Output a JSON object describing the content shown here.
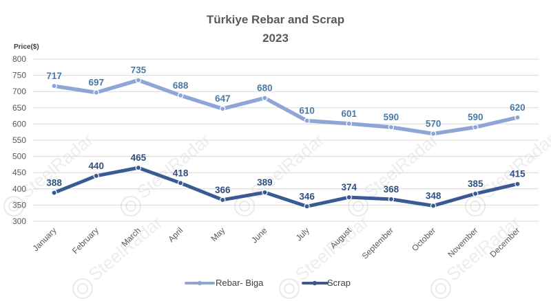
{
  "chart_data": {
    "type": "line",
    "title": "Türkiye Rebar and Scrap",
    "subtitle": "2023",
    "ylabel": "Price($)",
    "xlabel": "",
    "ylim": [
      300,
      800
    ],
    "yticks": [
      300,
      350,
      400,
      450,
      500,
      550,
      600,
      650,
      700,
      750,
      800
    ],
    "grid": true,
    "legend": "bottom",
    "categories": [
      "January",
      "February",
      "March",
      "April",
      "May",
      "June",
      "July",
      "August",
      "September",
      "October",
      "November",
      "December"
    ],
    "series": [
      {
        "name": "Rebar- Biga",
        "color": "#8ea5d6",
        "label_color": "#4a7aa5",
        "values": [
          717,
          697,
          735,
          688,
          647,
          680,
          610,
          601,
          590,
          570,
          590,
          620
        ]
      },
      {
        "name": "Scrap",
        "color": "#3a5a93",
        "label_color": "#2f4f80",
        "values": [
          388,
          440,
          465,
          418,
          366,
          389,
          346,
          374,
          368,
          348,
          385,
          415
        ]
      }
    ]
  },
  "watermark": "SteelRadar"
}
